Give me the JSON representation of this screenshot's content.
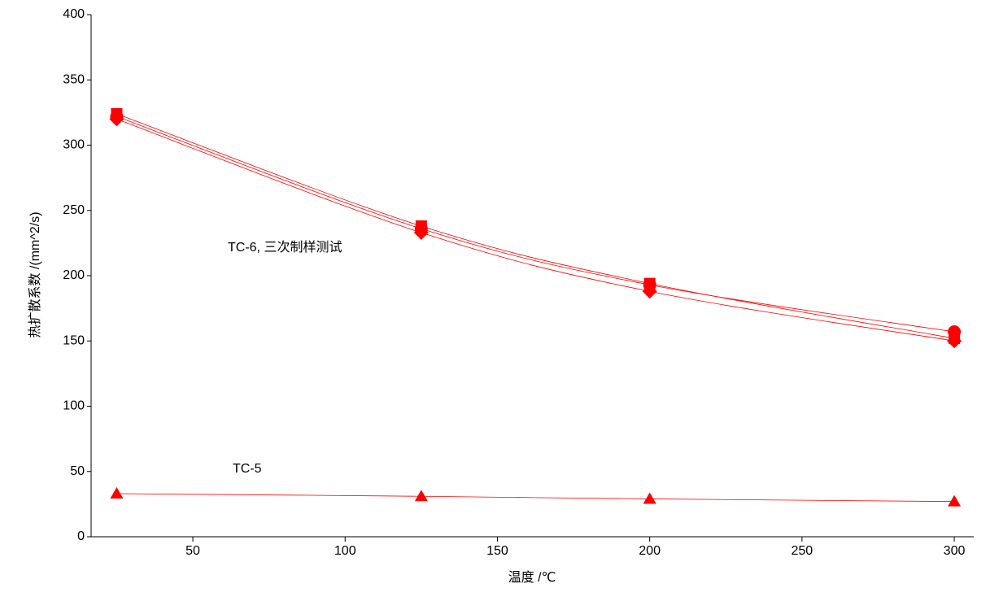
{
  "chart_data": {
    "type": "line",
    "x_label": "温度 /℃",
    "y_label": "热扩散系数 /(mm^2/s)",
    "annotations": [
      "TC-6, 三次制样测试",
      "TC-5"
    ],
    "x": [
      25,
      125,
      200,
      300
    ],
    "series": [
      {
        "marker": "square",
        "color": "#ff0000",
        "values": [
          324,
          238,
          194,
          152
        ]
      },
      {
        "marker": "circle",
        "color": "#ff0000",
        "values": [
          322,
          236,
          193,
          157
        ]
      },
      {
        "marker": "diamond",
        "color": "#ff0000",
        "values": [
          320,
          233,
          188,
          150
        ]
      },
      {
        "marker": "triangle",
        "color": "#ff0000",
        "values": [
          33,
          31,
          29,
          27
        ]
      }
    ],
    "xlim": [
      16.6,
      306.4
    ],
    "xticks": [
      50,
      100,
      150,
      200,
      250,
      300
    ],
    "ylim": [
      0,
      400
    ],
    "yticks": [
      0,
      50,
      100,
      150,
      200,
      250,
      300,
      350,
      400
    ],
    "grid": false
  }
}
